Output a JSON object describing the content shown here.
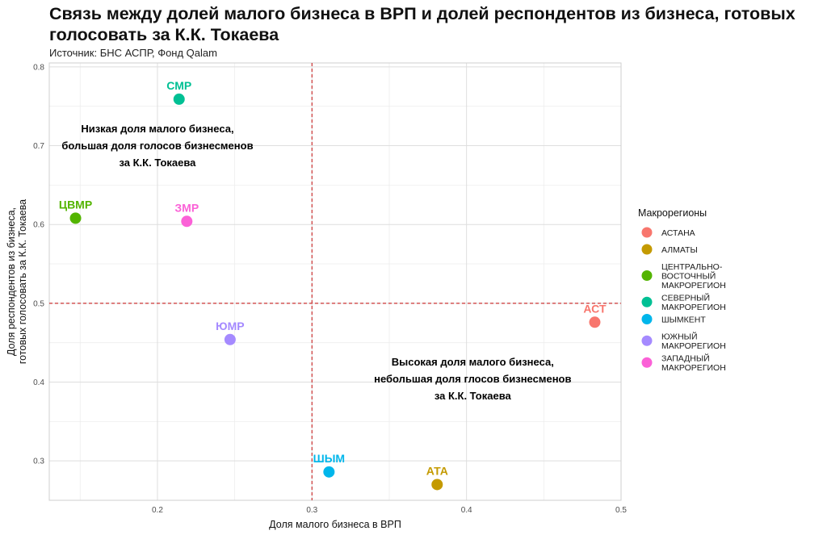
{
  "header": {
    "title": "Связь между долей малого бизнеса в ВРП и долей респондентов из бизнеса, готовых голосовать за К.К. Токаева",
    "subtitle": "Источник: БНС АСПР, Фонд Qalam"
  },
  "chart_data": {
    "type": "scatter",
    "xlabel": "Доля малого бизнеса в ВРП",
    "ylabel_lines": [
      "Доля респондентов из бизнеса,",
      "готовых голосовать за К.К. Токаева"
    ],
    "xlim": [
      0.13,
      0.5
    ],
    "ylim": [
      0.25,
      0.805
    ],
    "x_ticks": [
      0.2,
      0.3,
      0.4,
      0.5
    ],
    "y_ticks": [
      0.3,
      0.4,
      0.5,
      0.6,
      0.7,
      0.8
    ],
    "x_tick_labels": [
      "0.2",
      "0.3",
      "0.4",
      "0.5"
    ],
    "y_tick_labels": [
      "0.3",
      "0.4",
      "0.5",
      "0.6",
      "0.7",
      "0.8"
    ],
    "grid": true,
    "reference_lines": {
      "x": 0.3,
      "y": 0.5,
      "color": "#cc3333",
      "style": "dashed"
    },
    "legend": {
      "title": "Макрорегионы",
      "position": "right",
      "entries": [
        {
          "lines": [
            "АСТАНА"
          ],
          "color": "#F8766D"
        },
        {
          "lines": [
            "АЛМАТЫ"
          ],
          "color": "#C49A00"
        },
        {
          "lines": [
            "ЦЕНТРАЛЬНО-",
            "ВОСТОЧНЫЙ",
            "МАКРОРЕГИОН"
          ],
          "color": "#53B400"
        },
        {
          "lines": [
            "СЕВЕРНЫЙ",
            "МАКРОРЕГИОН"
          ],
          "color": "#00C094"
        },
        {
          "lines": [
            "ШЫМКЕНТ"
          ],
          "color": "#00B6EB"
        },
        {
          "lines": [
            "ЮЖНЫЙ",
            "МАКРОРЕГИОН"
          ],
          "color": "#A58AFF"
        },
        {
          "lines": [
            "ЗАПАДНЫЙ",
            "МАКРОРЕГИОН"
          ],
          "color": "#FB61D7"
        }
      ]
    },
    "points": [
      {
        "label": "АСТ",
        "x": 0.483,
        "y": 0.476,
        "color": "#F8766D"
      },
      {
        "label": "АТА",
        "x": 0.381,
        "y": 0.27,
        "color": "#C49A00"
      },
      {
        "label": "ЦВМР",
        "x": 0.147,
        "y": 0.608,
        "color": "#53B400"
      },
      {
        "label": "СМР",
        "x": 0.214,
        "y": 0.759,
        "color": "#00C094"
      },
      {
        "label": "ШЫМ",
        "x": 0.311,
        "y": 0.286,
        "color": "#00B6EB"
      },
      {
        "label": "ЮМР",
        "x": 0.247,
        "y": 0.454,
        "color": "#A58AFF"
      },
      {
        "label": "ЗМР",
        "x": 0.219,
        "y": 0.604,
        "color": "#FB61D7"
      }
    ],
    "annotations": [
      {
        "lines": [
          "Низкая доля малого бизнеса,",
          "большая доля голосов бизнесменов",
          "за К.К. Токаева"
        ],
        "x": 0.2,
        "y": 0.7
      },
      {
        "lines": [
          "Высокая доля малого бизнеса,",
          "небольшая доля глосов бизнесменов",
          "за К.К. Токаева"
        ],
        "x": 0.404,
        "y": 0.404
      }
    ]
  }
}
